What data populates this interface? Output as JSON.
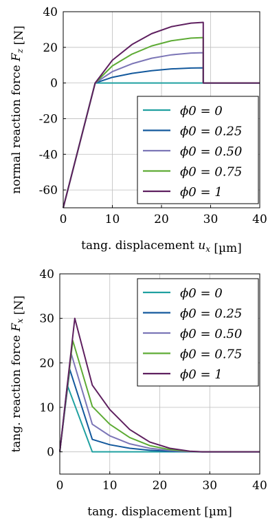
{
  "colors": {
    "phi_0": "#1fa0a0",
    "phi_025": "#12589c",
    "phi_050": "#7b75b6",
    "phi_075": "#5dab34",
    "phi_1": "#5e1f5f"
  },
  "chart_data": [
    {
      "type": "line",
      "title": "",
      "xlabel": "tang. displacement u_x [µm]",
      "ylabel": "normal reaction force F_z [N]",
      "xlim": [
        0,
        40
      ],
      "ylim": [
        -70,
        40
      ],
      "x_ticks": [
        "0",
        "10",
        "20",
        "30",
        "40"
      ],
      "y_ticks": [
        "40",
        "20",
        "0",
        "-20",
        "-40",
        "-60"
      ],
      "grid": true,
      "legend_position": "bottom-right",
      "series": [
        {
          "name": "ϕ0 = 0",
          "color": "#1fa0a0",
          "x": [
            0,
            6.5,
            28.5,
            40
          ],
          "y": [
            -70,
            0,
            0,
            0
          ]
        },
        {
          "name": "ϕ0 = 0.25",
          "color": "#12589c",
          "x": [
            0,
            6.5,
            10,
            14,
            18,
            22,
            26,
            28.5,
            28.5,
            40
          ],
          "y": [
            -70,
            0,
            3.2,
            5.4,
            6.9,
            7.9,
            8.4,
            8.5,
            0,
            0
          ]
        },
        {
          "name": "ϕ0 = 0.50",
          "color": "#7b75b6",
          "x": [
            0,
            6.5,
            10,
            14,
            18,
            22,
            26,
            28.5,
            28.5,
            40
          ],
          "y": [
            -70,
            0,
            6.4,
            10.8,
            13.9,
            15.8,
            16.8,
            17,
            0,
            0
          ]
        },
        {
          "name": "ϕ0 = 0.75",
          "color": "#5dab34",
          "x": [
            0,
            6.5,
            10,
            14,
            18,
            22,
            26,
            28.5,
            28.5,
            40
          ],
          "y": [
            -70,
            0,
            9.6,
            16.2,
            20.8,
            23.7,
            25.2,
            25.5,
            0,
            0
          ]
        },
        {
          "name": "ϕ0 = 1",
          "color": "#5e1f5f",
          "x": [
            0,
            6.5,
            10,
            14,
            18,
            22,
            26,
            28.5,
            28.5,
            40
          ],
          "y": [
            -70,
            0,
            12.8,
            21.6,
            27.7,
            31.6,
            33.6,
            34,
            0,
            0
          ]
        }
      ]
    },
    {
      "type": "line",
      "title": "",
      "xlabel": "tang. displacement [µm]",
      "ylabel": "tang. reaction force F_x [N]",
      "xlim": [
        0,
        40
      ],
      "ylim": [
        -5,
        40
      ],
      "x_ticks": [
        "0",
        "10",
        "20",
        "30",
        "40"
      ],
      "y_ticks": [
        "40",
        "30",
        "20",
        "10",
        "0"
      ],
      "grid": true,
      "legend_position": "top-right",
      "series": [
        {
          "name": "ϕ0 = 0",
          "color": "#1fa0a0",
          "x": [
            0,
            1.5,
            6.5,
            40
          ],
          "y": [
            0,
            15,
            0,
            0
          ]
        },
        {
          "name": "ϕ0 = 0.25",
          "color": "#12589c",
          "x": [
            0,
            2,
            6.5,
            10,
            14,
            18,
            22,
            26,
            28.5,
            40
          ],
          "y": [
            0,
            18.5,
            2.8,
            1.6,
            0.8,
            0.35,
            0.12,
            0.02,
            0,
            0
          ]
        },
        {
          "name": "ϕ0 = 0.50",
          "color": "#7b75b6",
          "x": [
            0,
            2.3,
            6.5,
            10,
            14,
            18,
            22,
            26,
            28.5,
            40
          ],
          "y": [
            0,
            22,
            6.2,
            3.6,
            1.8,
            0.8,
            0.3,
            0.05,
            0,
            0
          ]
        },
        {
          "name": "ϕ0 = 0.75",
          "color": "#5dab34",
          "x": [
            0,
            2.6,
            6.5,
            10,
            14,
            18,
            22,
            26,
            28.5,
            40
          ],
          "y": [
            0,
            25,
            10.2,
            6.2,
            3.2,
            1.4,
            0.5,
            0.1,
            0,
            0
          ]
        },
        {
          "name": "ϕ0 = 1",
          "color": "#5e1f5f",
          "x": [
            0,
            3,
            6.5,
            10,
            14,
            18,
            22,
            26,
            28.5,
            40
          ],
          "y": [
            0,
            30,
            15,
            9.5,
            5,
            2.2,
            0.8,
            0.15,
            0,
            0
          ]
        }
      ]
    }
  ]
}
